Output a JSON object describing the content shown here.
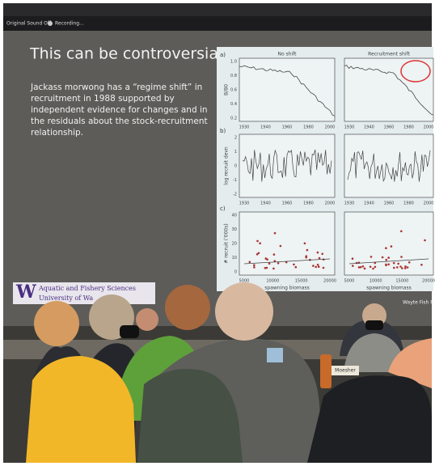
{
  "toolbar": {
    "sound": "Original Sound Off",
    "recording": "Recording..."
  },
  "slide": {
    "title": "This can be controversial!",
    "body": [
      "Jackass morwong has a “regime shift” in",
      "recruitment in 1988 supported by",
      "independent evidence for changes and in",
      "the residuals about the stock-recruitment",
      "relationship."
    ],
    "logo": {
      "initial": "W",
      "line1": "Aquatic and Fishery Sciences",
      "line2": "University of Wa"
    },
    "credit": "Wayte Fish R"
  },
  "figure": {
    "panels": [
      {
        "label": "a)",
        "ylabel": "B/B0",
        "yticks": [
          "0.2",
          "0.4",
          "0.6",
          "0.8",
          "1.0"
        ],
        "xticks": [
          "1930",
          "1940",
          "1960",
          "1980",
          "2000"
        ]
      },
      {
        "label": "b)",
        "ylabel": "log recruit devn",
        "yticks": [
          "-2",
          "-1",
          "0",
          "1",
          "2"
        ],
        "xticks": [
          "1930",
          "1940",
          "1960",
          "1980",
          "2000"
        ]
      },
      {
        "label": "c)",
        "ylabel": "# recruit ('000s)",
        "xlabel": "spawning biomass",
        "yticks": [
          "0",
          "10",
          "20",
          "30",
          "40"
        ],
        "xticks": [
          "5000",
          "10000",
          "15000",
          "20000"
        ]
      }
    ],
    "columns": [
      "No shift",
      "Recruitment shift"
    ]
  },
  "nameplate": "Moesher"
}
